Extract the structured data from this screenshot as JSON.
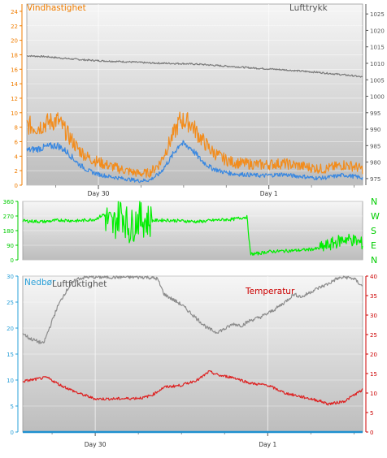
{
  "chart_data": [
    {
      "type": "line",
      "panel": "wind-pressure",
      "x_ticks": [
        {
          "label": "Day 30",
          "day": 0.0
        },
        {
          "label": "Day 1",
          "day": 1.0
        }
      ],
      "x_domain_days": [
        -0.42,
        1.55
      ],
      "left_axis": {
        "label": "Vindhastighet",
        "color": "#f07d00",
        "range": [
          0,
          25
        ],
        "ticks": [
          0,
          2,
          4,
          6,
          8,
          10,
          12,
          14,
          16,
          18,
          20,
          22,
          24
        ]
      },
      "right_axis": {
        "label": "Lufttrykk",
        "color": "#555555",
        "range": [
          973,
          1028
        ],
        "ticks": [
          975,
          980,
          985,
          990,
          995,
          1000,
          1005,
          1010,
          1015,
          1020,
          1025
        ]
      },
      "series": [
        {
          "axis": "right",
          "color": "#7a7a7a",
          "x": [
            -0.42,
            -0.3,
            -0.2,
            -0.1,
            0.0,
            0.1,
            0.2,
            0.3,
            0.4,
            0.5,
            0.6,
            0.7,
            0.8,
            0.9,
            1.0,
            1.1,
            1.2,
            1.3,
            1.4,
            1.5,
            1.55
          ],
          "y": [
            1012.3,
            1012.0,
            1011.5,
            1011.1,
            1010.8,
            1010.6,
            1010.4,
            1010.1,
            1010.0,
            1009.9,
            1009.7,
            1009.3,
            1009.0,
            1008.6,
            1008.3,
            1008.0,
            1007.6,
            1007.2,
            1006.7,
            1006.2,
            1005.8
          ]
        },
        {
          "axis": "left",
          "color": "#f28c1c",
          "x": [
            -0.42,
            -0.36,
            -0.3,
            -0.24,
            -0.18,
            -0.12,
            -0.06,
            0.0,
            0.06,
            0.12,
            0.18,
            0.24,
            0.3,
            0.36,
            0.42,
            0.48,
            0.54,
            0.6,
            0.66,
            0.72,
            0.78,
            0.84,
            0.9,
            0.96,
            1.02,
            1.08,
            1.14,
            1.2,
            1.26,
            1.32,
            1.38,
            1.44,
            1.5,
            1.55
          ],
          "y": [
            8.3,
            8.0,
            8.6,
            9.0,
            7.0,
            5.0,
            3.8,
            3.2,
            2.7,
            2.3,
            1.9,
            1.6,
            1.7,
            3.0,
            6.0,
            9.0,
            8.6,
            6.5,
            4.8,
            3.8,
            3.2,
            3.0,
            2.9,
            2.8,
            2.9,
            3.0,
            2.8,
            2.6,
            2.4,
            2.2,
            2.5,
            2.8,
            2.6,
            2.2
          ]
        },
        {
          "axis": "left",
          "color": "#3a88e0",
          "x": [
            -0.42,
            -0.36,
            -0.3,
            -0.24,
            -0.18,
            -0.12,
            -0.06,
            0.0,
            0.06,
            0.12,
            0.18,
            0.24,
            0.3,
            0.36,
            0.42,
            0.48,
            0.54,
            0.6,
            0.66,
            0.72,
            0.78,
            0.84,
            0.9,
            0.96,
            1.02,
            1.08,
            1.14,
            1.2,
            1.26,
            1.32,
            1.38,
            1.44,
            1.5,
            1.55
          ],
          "y": [
            4.8,
            5.0,
            5.3,
            5.5,
            4.5,
            3.0,
            2.0,
            1.5,
            1.2,
            1.0,
            0.8,
            0.6,
            0.7,
            1.6,
            3.6,
            5.8,
            5.2,
            3.5,
            2.4,
            1.9,
            1.6,
            1.5,
            1.4,
            1.3,
            1.4,
            1.5,
            1.3,
            1.2,
            1.0,
            1.0,
            1.2,
            1.4,
            1.2,
            1.0
          ]
        }
      ]
    },
    {
      "type": "line",
      "panel": "wind-direction",
      "x_domain_days": [
        -0.42,
        1.55
      ],
      "left_axis": {
        "color": "#00cc00",
        "range": [
          0,
          360
        ],
        "ticks": [
          0,
          90,
          180,
          270,
          360
        ]
      },
      "compass": [
        "N",
        "W",
        "S",
        "E",
        "N"
      ],
      "series": [
        {
          "color": "#00ee00",
          "x": [
            -0.42,
            -0.3,
            -0.2,
            -0.1,
            0.0,
            0.05,
            0.1,
            0.15,
            0.2,
            0.25,
            0.3,
            0.4,
            0.5,
            0.6,
            0.7,
            0.8,
            0.88,
            0.9,
            0.95,
            1.0,
            1.1,
            1.2,
            1.3,
            1.35,
            1.4,
            1.45,
            1.5,
            1.55
          ],
          "y": [
            240,
            235,
            245,
            240,
            250,
            280,
            200,
            300,
            190,
            260,
            240,
            245,
            240,
            235,
            245,
            250,
            265,
            35,
            40,
            50,
            55,
            60,
            70,
            90,
            110,
            130,
            120,
            100
          ]
        }
      ]
    },
    {
      "type": "line",
      "panel": "precip-humidity-temperature",
      "x_ticks": [
        {
          "label": "Day 30",
          "day": 0.0
        },
        {
          "label": "Day 1",
          "day": 1.0
        }
      ],
      "x_domain_days": [
        -0.42,
        1.55
      ],
      "left_axis": {
        "label": "Nedbør",
        "color": "#2aa0d8",
        "range": [
          0,
          30
        ],
        "ticks": [
          0,
          5,
          10,
          15,
          20,
          25,
          30
        ]
      },
      "right_axis": {
        "label": "Temperatur",
        "color": "#cc0000",
        "range": [
          0,
          40
        ],
        "ticks": [
          0,
          5,
          10,
          15,
          20,
          25,
          30,
          35,
          40
        ]
      },
      "series": [
        {
          "name": "Luftfuktighet",
          "axis": "left",
          "color": "#8c8c8c",
          "x": [
            -0.42,
            -0.38,
            -0.34,
            -0.3,
            -0.26,
            -0.22,
            -0.18,
            -0.14,
            -0.1,
            -0.05,
            0.0,
            0.1,
            0.2,
            0.3,
            0.36,
            0.4,
            0.45,
            0.5,
            0.55,
            0.6,
            0.65,
            0.7,
            0.75,
            0.8,
            0.85,
            0.9,
            0.95,
            1.0,
            1.05,
            1.1,
            1.15,
            1.2,
            1.25,
            1.3,
            1.35,
            1.4,
            1.45,
            1.5,
            1.55
          ],
          "y": [
            19.0,
            18.0,
            17.5,
            17.0,
            20.5,
            24.0,
            26.5,
            28.5,
            29.5,
            29.8,
            29.8,
            29.8,
            29.8,
            29.8,
            29.5,
            26.5,
            25.5,
            24.5,
            23.0,
            21.5,
            20.0,
            19.2,
            19.8,
            20.8,
            20.5,
            21.5,
            22.0,
            22.8,
            23.8,
            25.0,
            26.5,
            26.0,
            27.0,
            27.8,
            28.5,
            29.5,
            29.8,
            29.5,
            28.0
          ]
        },
        {
          "axis": "right",
          "color": "#dd2222",
          "x": [
            -0.42,
            -0.35,
            -0.28,
            -0.2,
            -0.1,
            0.0,
            0.1,
            0.2,
            0.28,
            0.33,
            0.4,
            0.5,
            0.6,
            0.66,
            0.72,
            0.8,
            0.9,
            1.0,
            1.1,
            1.2,
            1.3,
            1.35,
            1.4,
            1.45,
            1.5,
            1.55
          ],
          "y": [
            13.0,
            13.5,
            14.0,
            12.0,
            10.0,
            8.5,
            8.5,
            8.6,
            8.8,
            9.5,
            11.5,
            12.0,
            13.5,
            15.5,
            14.5,
            14.0,
            12.5,
            12.0,
            10.0,
            9.0,
            8.0,
            7.2,
            7.5,
            8.0,
            9.5,
            10.8
          ]
        },
        {
          "axis": "left",
          "color": "#1e90d0",
          "x": [
            -0.42,
            1.55
          ],
          "y": [
            0,
            0
          ]
        }
      ]
    }
  ]
}
